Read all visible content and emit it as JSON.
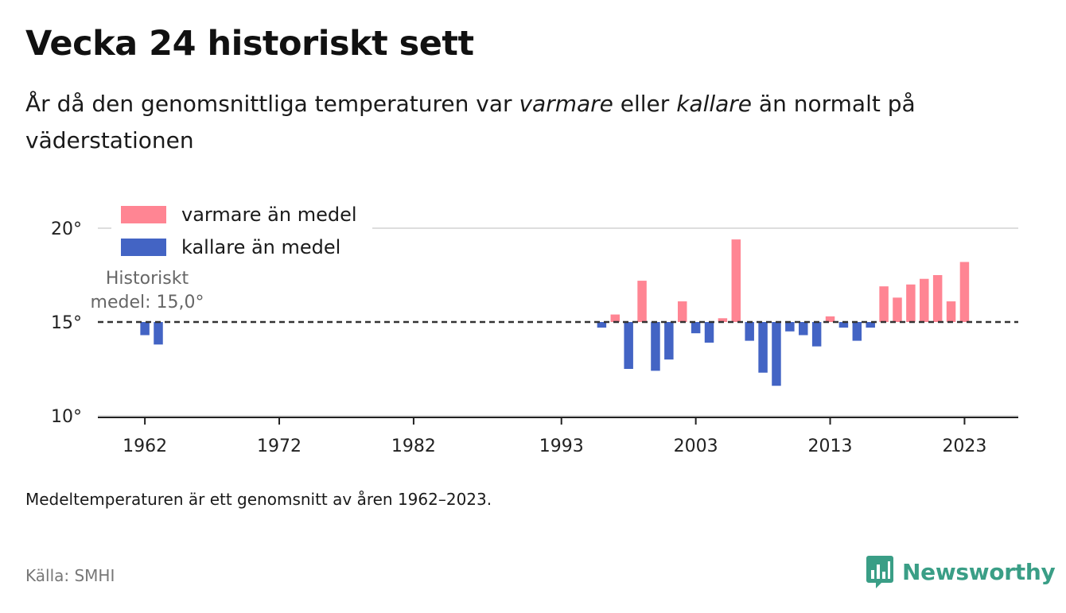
{
  "header": {
    "title": "Vecka 24 historiskt sett",
    "subtitle_parts": [
      "År då den genomsnittliga temperaturen var ",
      "varmare",
      " eller ",
      "kallare",
      " än normalt på väderstationen"
    ]
  },
  "footer": {
    "note": "Medeltemperaturen är ett genomsnitt av åren 1962–2023.",
    "source": "Källa: SMHI",
    "brand": "Newsworthy",
    "brand_icon": "newsworthy-logo-icon"
  },
  "colors": {
    "warm": "#ff8593",
    "cold": "#4364c4",
    "brand": "#3a9e86",
    "baseline": "#333333",
    "grid": "#dddddd"
  },
  "chart_data": {
    "type": "bar",
    "baseline": 15.0,
    "baseline_label": [
      "Historiskt",
      "medel: 15,0°"
    ],
    "ylim": [
      10,
      20
    ],
    "y_ticks": [
      {
        "value": 10,
        "label": "10°"
      },
      {
        "value": 15,
        "label": "15°"
      },
      {
        "value": 20,
        "label": "20°"
      }
    ],
    "x_domain": [
      1958.5,
      2027
    ],
    "x_ticks": [
      1962,
      1972,
      1982,
      1993,
      2003,
      2013,
      2023
    ],
    "legend": [
      {
        "key": "warm",
        "label": "varmare än medel"
      },
      {
        "key": "cold",
        "label": "kallare än medel"
      }
    ],
    "points": [
      {
        "year": 1962,
        "value": 14.3
      },
      {
        "year": 1963,
        "value": 13.8
      },
      {
        "year": 1996,
        "value": 14.7
      },
      {
        "year": 1997,
        "value": 15.4
      },
      {
        "year": 1998,
        "value": 12.5
      },
      {
        "year": 1999,
        "value": 17.2
      },
      {
        "year": 2000,
        "value": 12.4
      },
      {
        "year": 2001,
        "value": 13.0
      },
      {
        "year": 2002,
        "value": 16.1
      },
      {
        "year": 2003,
        "value": 14.4
      },
      {
        "year": 2004,
        "value": 13.9
      },
      {
        "year": 2005,
        "value": 15.2
      },
      {
        "year": 2006,
        "value": 19.4
      },
      {
        "year": 2007,
        "value": 14.0
      },
      {
        "year": 2008,
        "value": 12.3
      },
      {
        "year": 2009,
        "value": 11.6
      },
      {
        "year": 2010,
        "value": 14.5
      },
      {
        "year": 2011,
        "value": 14.3
      },
      {
        "year": 2012,
        "value": 13.7
      },
      {
        "year": 2013,
        "value": 15.3
      },
      {
        "year": 2014,
        "value": 14.7
      },
      {
        "year": 2015,
        "value": 14.0
      },
      {
        "year": 2016,
        "value": 14.7
      },
      {
        "year": 2017,
        "value": 16.9
      },
      {
        "year": 2018,
        "value": 16.3
      },
      {
        "year": 2019,
        "value": 17.0
      },
      {
        "year": 2020,
        "value": 17.3
      },
      {
        "year": 2021,
        "value": 17.5
      },
      {
        "year": 2022,
        "value": 16.1
      },
      {
        "year": 2023,
        "value": 18.2
      }
    ]
  }
}
